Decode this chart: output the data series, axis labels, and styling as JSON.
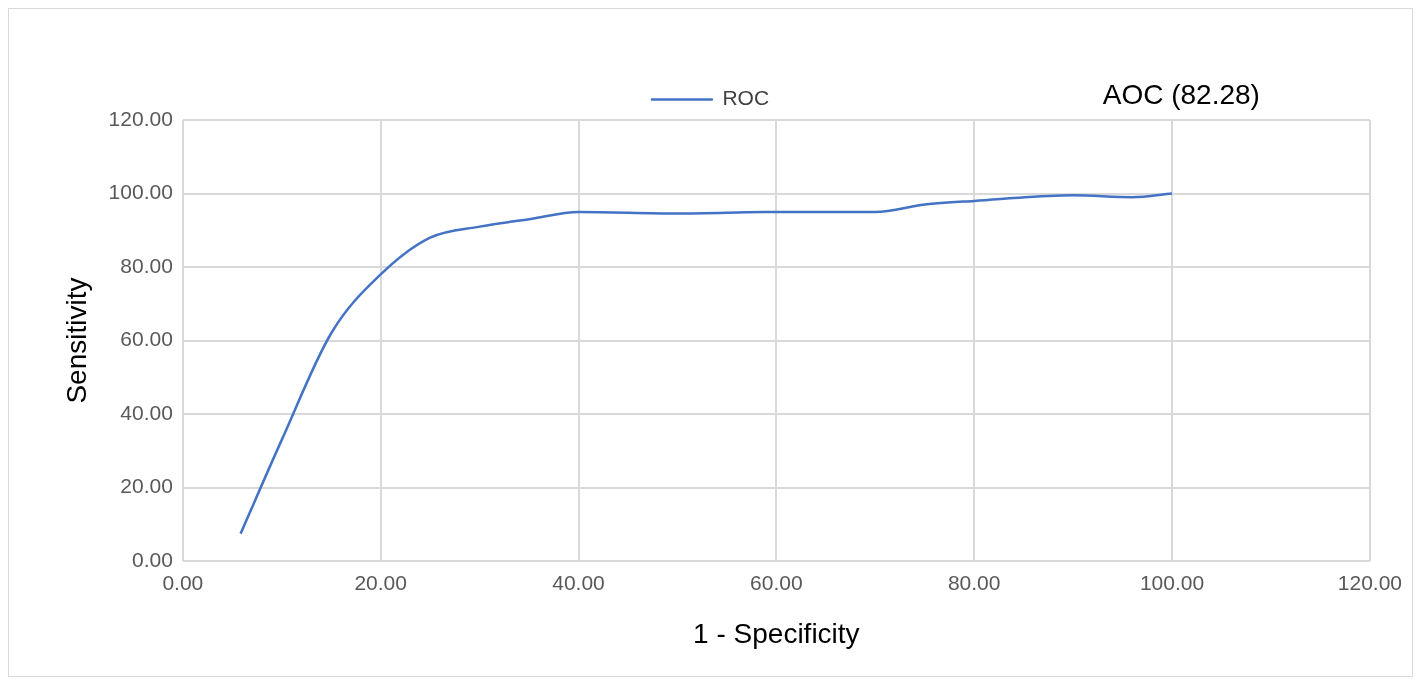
{
  "chart_data": {
    "type": "line",
    "xlabel": "1 - Specificity",
    "ylabel": "Sensitivity",
    "x": [
      5.84,
      10,
      15,
      20,
      25,
      30,
      35,
      40,
      50,
      60,
      70,
      75,
      80,
      90,
      96,
      100
    ],
    "series": [
      {
        "name": "ROC",
        "color": "#4472c4",
        "values": [
          7.5,
          33,
          62,
          78,
          88,
          91,
          93,
          95,
          94.6,
          95,
          95,
          97,
          98,
          99.5,
          99,
          100
        ]
      }
    ],
    "xlim": [
      0,
      120
    ],
    "ylim": [
      0,
      120
    ],
    "xticks": [
      {
        "value": 0,
        "label": "0.00"
      },
      {
        "value": 20,
        "label": "20.00"
      },
      {
        "value": 40,
        "label": "40.00"
      },
      {
        "value": 60,
        "label": "60.00"
      },
      {
        "value": 80,
        "label": "80.00"
      },
      {
        "value": 100,
        "label": "100.00"
      },
      {
        "value": 120,
        "label": "120.00"
      }
    ],
    "yticks": [
      {
        "value": 0,
        "label": "0.00"
      },
      {
        "value": 20,
        "label": "20.00"
      },
      {
        "value": 40,
        "label": "40.00"
      },
      {
        "value": 60,
        "label": "60.00"
      },
      {
        "value": 80,
        "label": "80.00"
      },
      {
        "value": 100,
        "label": "100.00"
      },
      {
        "value": 120,
        "label": "120.00"
      }
    ],
    "grid": true,
    "legend": "top",
    "marker": "none",
    "line_style": "solid",
    "annotations": [
      "AOC (82.28)"
    ]
  }
}
